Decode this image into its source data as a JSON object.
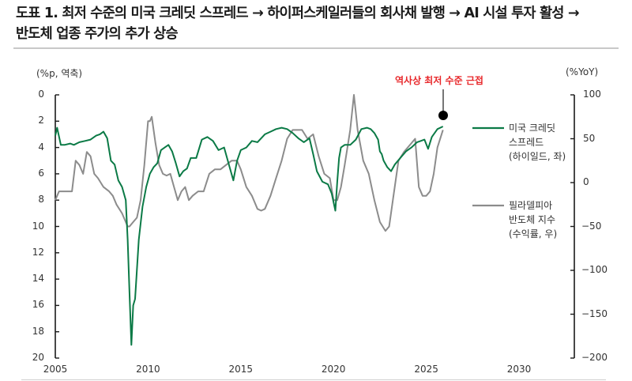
{
  "title": {
    "line1": "도표 1. 최저 수준의 미국 크레딧 스프레드 → 하이퍼스케일러들의 회사채 발행 → AI 시설 투자 활성 →",
    "line2": "반도체 업종 주가의 추가 상승"
  },
  "chart_data": {
    "type": "line",
    "title": "도표 1. 최저 수준의 미국 크레딧 스프레드 → 하이퍼스케일러들의 회사채 발행 → AI 시설 투자 활성 → 반도체 업종 주가의 추가 상승",
    "xlabel": "",
    "left_axis": {
      "label": "(%p, 역축)",
      "ticks": [
        "0",
        "2",
        "4",
        "6",
        "8",
        "10",
        "12",
        "14",
        "16",
        "18",
        "20"
      ],
      "range": [
        0,
        20
      ],
      "inverted": true
    },
    "right_axis": {
      "label": "(%YoY)",
      "ticks": [
        "100",
        "50",
        "0",
        "-50",
        "-100",
        "-150",
        "-200"
      ],
      "range": [
        -200,
        100
      ]
    },
    "x_ticks": [
      "2005",
      "2010",
      "2015",
      "2020",
      "2025",
      "2030"
    ],
    "xlim": [
      2005,
      2030
    ],
    "annotation": {
      "text": "역사상 최저 수준 근접",
      "color": "#e8282b",
      "marker_x": 2025.9,
      "marker_y_left": 1.6
    },
    "legend_position": "right",
    "series": [
      {
        "name": "미국 크레딧 스프레드 (하이일드, 좌)",
        "axis": "left",
        "color": "#0b7a46",
        "x": [
          2005.0,
          2005.1,
          2005.3,
          2005.5,
          2005.8,
          2006.0,
          2006.3,
          2006.6,
          2006.9,
          2007.2,
          2007.4,
          2007.6,
          2007.8,
          2008.0,
          2008.2,
          2008.4,
          2008.6,
          2008.8,
          2008.9,
          2009.0,
          2009.1,
          2009.2,
          2009.3,
          2009.5,
          2009.7,
          2009.9,
          2010.1,
          2010.3,
          2010.5,
          2010.7,
          2010.9,
          2011.1,
          2011.3,
          2011.5,
          2011.7,
          2011.9,
          2012.1,
          2012.3,
          2012.6,
          2012.9,
          2013.2,
          2013.5,
          2013.8,
          2014.1,
          2014.4,
          2014.6,
          2014.8,
          2015.0,
          2015.3,
          2015.6,
          2015.9,
          2016.1,
          2016.3,
          2016.6,
          2016.9,
          2017.2,
          2017.5,
          2017.8,
          2018.1,
          2018.4,
          2018.7,
          2018.9,
          2019.1,
          2019.4,
          2019.7,
          2019.9,
          2020.1,
          2020.2,
          2020.3,
          2020.4,
          2020.6,
          2020.9,
          2021.2,
          2021.5,
          2021.8,
          2022.0,
          2022.2,
          2022.4,
          2022.5,
          2022.6,
          2022.7,
          2022.9,
          2023.1,
          2023.3,
          2023.6,
          2023.9,
          2024.2,
          2024.5,
          2024.7,
          2024.9,
          2025.1,
          2025.3,
          2025.6,
          2025.9
        ],
        "values": [
          3.1,
          2.5,
          3.8,
          3.8,
          3.7,
          3.8,
          3.6,
          3.5,
          3.4,
          3.1,
          3.0,
          2.8,
          3.3,
          5.0,
          5.3,
          6.5,
          7.0,
          8.0,
          11.0,
          15.0,
          19.0,
          16.0,
          15.5,
          11.0,
          8.5,
          7.0,
          6.0,
          5.5,
          5.2,
          4.2,
          4.0,
          3.8,
          4.3,
          5.2,
          6.2,
          5.8,
          5.6,
          4.8,
          4.8,
          3.4,
          3.2,
          3.5,
          4.2,
          4.0,
          5.5,
          6.5,
          5.0,
          4.2,
          4.0,
          3.5,
          3.6,
          3.3,
          3.0,
          2.8,
          2.6,
          2.5,
          2.6,
          2.9,
          3.3,
          3.6,
          3.3,
          4.5,
          5.8,
          6.6,
          6.8,
          7.5,
          8.8,
          6.6,
          4.8,
          4.0,
          3.8,
          3.8,
          3.4,
          2.6,
          2.5,
          2.6,
          2.9,
          3.4,
          4.3,
          4.5,
          5.0,
          5.5,
          5.8,
          5.3,
          4.8,
          4.3,
          4.0,
          3.6,
          3.5,
          3.4,
          4.1,
          3.2,
          2.6,
          2.4
        ]
      },
      {
        "name": "필라델피아 반도체 지수 (수익률, 우)",
        "axis": "right",
        "color": "#8c8c8c",
        "x": [
          2005.0,
          2005.2,
          2005.4,
          2005.7,
          2005.9,
          2006.1,
          2006.3,
          2006.5,
          2006.7,
          2006.9,
          2007.1,
          2007.3,
          2007.6,
          2007.9,
          2008.1,
          2008.3,
          2008.6,
          2008.8,
          2008.9,
          2009.0,
          2009.2,
          2009.4,
          2009.6,
          2009.8,
          2010.0,
          2010.1,
          2010.2,
          2010.4,
          2010.6,
          2010.8,
          2011.0,
          2011.2,
          2011.4,
          2011.6,
          2011.8,
          2012.0,
          2012.2,
          2012.4,
          2012.7,
          2013.0,
          2013.3,
          2013.6,
          2013.9,
          2014.2,
          2014.5,
          2014.8,
          2015.0,
          2015.3,
          2015.6,
          2015.9,
          2016.1,
          2016.3,
          2016.6,
          2016.9,
          2017.2,
          2017.5,
          2017.8,
          2018.0,
          2018.3,
          2018.6,
          2018.9,
          2019.2,
          2019.5,
          2019.8,
          2020.0,
          2020.2,
          2020.4,
          2020.6,
          2020.9,
          2021.1,
          2021.2,
          2021.3,
          2021.6,
          2021.9,
          2022.2,
          2022.5,
          2022.8,
          2023.0,
          2023.2,
          2023.5,
          2023.8,
          2024.0,
          2024.2,
          2024.4,
          2024.6,
          2024.8,
          2025.0,
          2025.2,
          2025.4,
          2025.6,
          2025.9
        ],
        "values": [
          -20,
          -10,
          -10,
          -10,
          -10,
          25,
          20,
          10,
          35,
          30,
          10,
          5,
          -5,
          -10,
          -15,
          -25,
          -35,
          -45,
          -50,
          -50,
          -45,
          -40,
          -20,
          20,
          70,
          70,
          75,
          45,
          20,
          10,
          8,
          10,
          -5,
          -20,
          -10,
          -5,
          -20,
          -15,
          -10,
          -10,
          10,
          15,
          15,
          20,
          25,
          25,
          15,
          -5,
          -15,
          -30,
          -32,
          -30,
          -15,
          5,
          25,
          50,
          60,
          60,
          60,
          50,
          55,
          30,
          10,
          5,
          -20,
          -20,
          -5,
          20,
          60,
          100,
          80,
          60,
          25,
          10,
          -20,
          -45,
          -55,
          -50,
          -20,
          25,
          35,
          40,
          45,
          50,
          -5,
          -15,
          -15,
          -10,
          10,
          40,
          60
        ]
      }
    ]
  },
  "axes": {
    "left_unit": "(%p, 역축)",
    "right_unit": "(%YoY)",
    "left_ticks": [
      "0",
      "2",
      "4",
      "6",
      "8",
      "10",
      "12",
      "14",
      "16",
      "18",
      "20"
    ],
    "right_ticks": [
      "100",
      "50",
      "0",
      "−50",
      "−100",
      "−150",
      "−200"
    ],
    "x_ticks": [
      "2005",
      "2010",
      "2015",
      "2020",
      "2025",
      "2030"
    ]
  },
  "annotation": {
    "text": "역사상 최저 수준 근접"
  },
  "legend": {
    "items": [
      {
        "lines": [
          "미국 크레딧",
          "스프레드",
          "(하이일드, 좌)"
        ],
        "color": "#0b7a46"
      },
      {
        "lines": [
          "필라델피아",
          "반도체 지수",
          "(수익률, 우)"
        ],
        "color": "#8c8c8c"
      }
    ]
  },
  "colors": {
    "green": "#0b7a46",
    "gray": "#8c8c8c",
    "annotation": "#e8282b",
    "axis": "#1a1a1a"
  }
}
